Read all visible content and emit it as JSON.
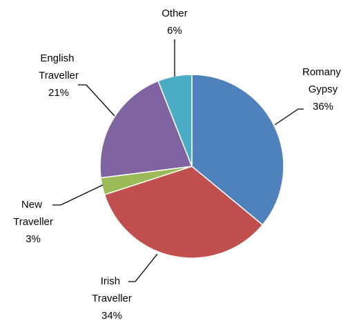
{
  "chart_data": {
    "type": "pie",
    "categories": [
      "Romany Gypsy",
      "Irish Traveller",
      "New Traveller",
      "English Traveller",
      "Other"
    ],
    "values": [
      36,
      34,
      3,
      21,
      6
    ],
    "value_labels": [
      "36%",
      "34%",
      "3%",
      "21%",
      "6%"
    ],
    "colors": [
      "#4f81bd",
      "#c0504d",
      "#9bbb59",
      "#8064a2",
      "#4bacc6"
    ]
  }
}
